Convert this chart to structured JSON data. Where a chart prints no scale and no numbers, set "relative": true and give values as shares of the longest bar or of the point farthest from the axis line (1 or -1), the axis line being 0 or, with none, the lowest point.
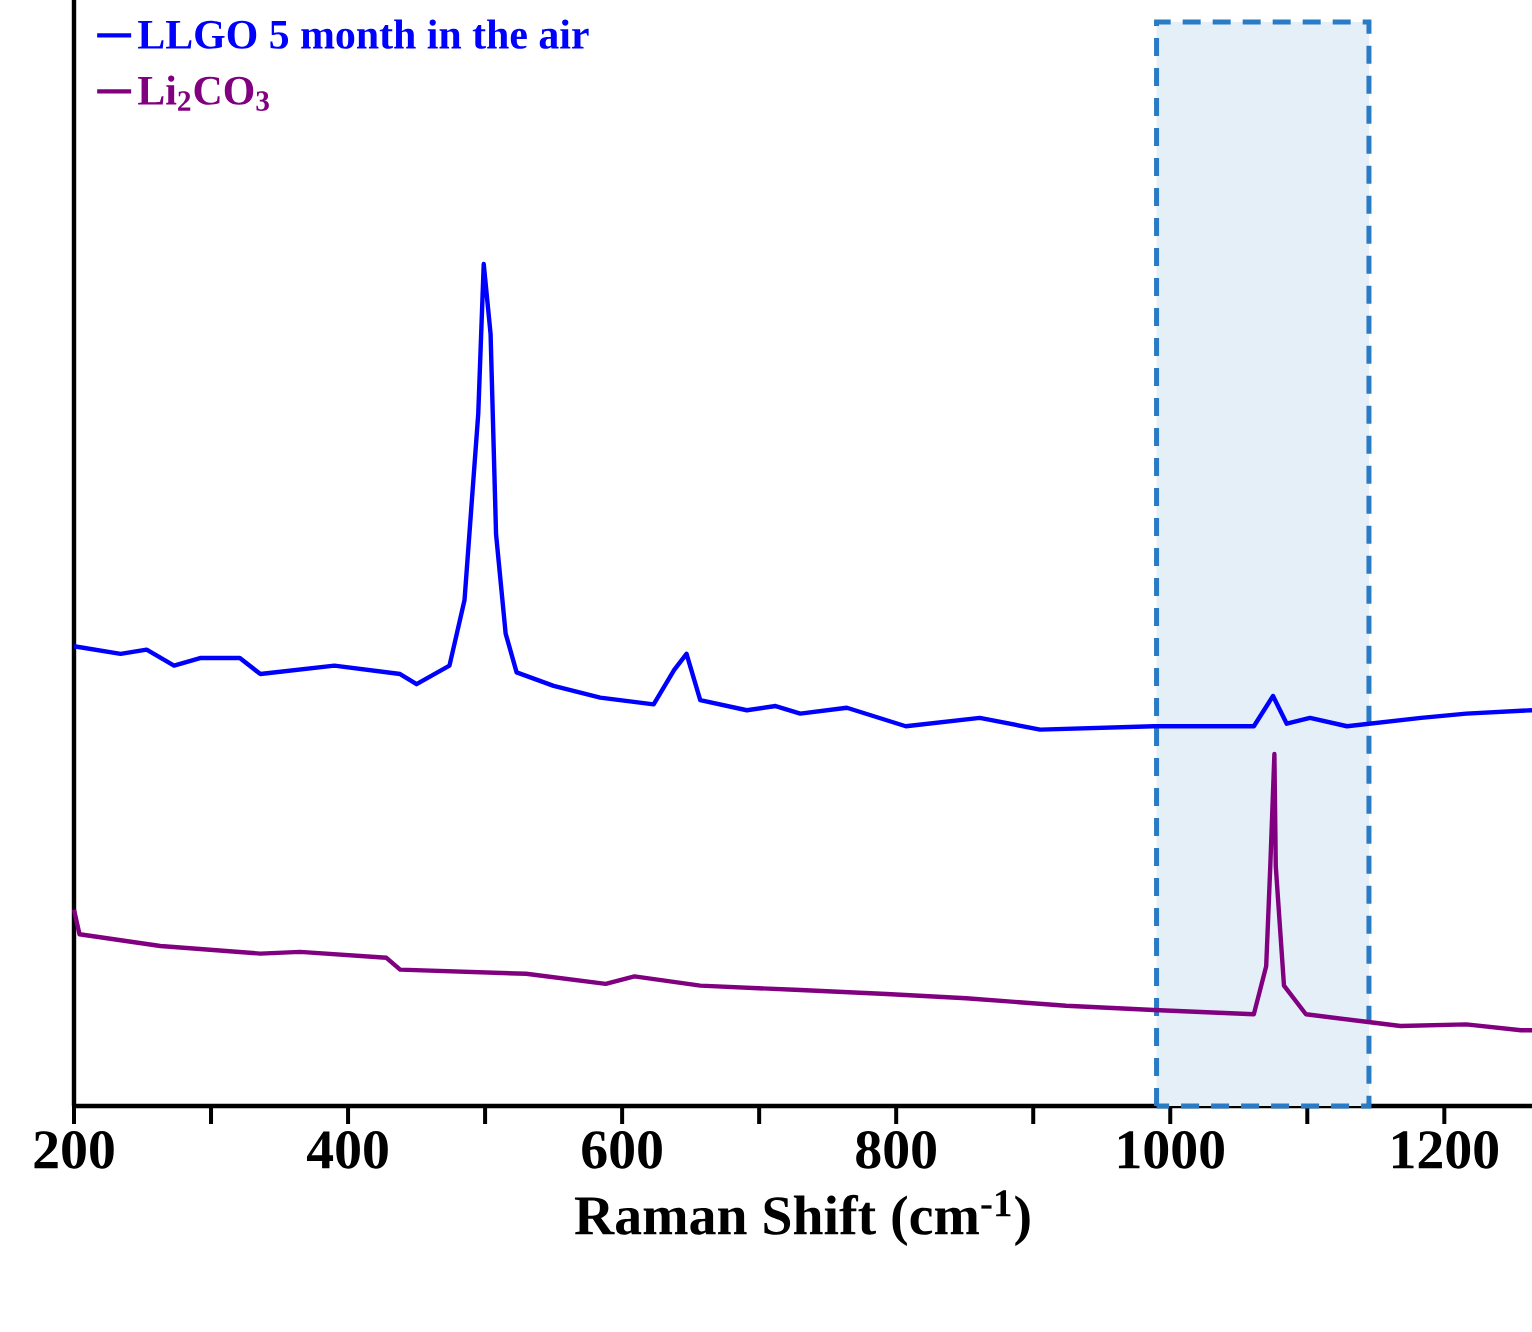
{
  "chart_data": {
    "type": "line",
    "xlabel": "Raman Shift (cm$^{-1}$)",
    "relative": true,
    "legend": "top left",
    "tick_labels": "x",
    "xlim": [
      200,
      1264
    ],
    "xticks": [
      200,
      {
        "value": 300,
        "label": null
      },
      400,
      {
        "value": 500,
        "label": null
      },
      600,
      {
        "value": 700,
        "label": null
      },
      800,
      {
        "value": 900,
        "label": null
      },
      1000,
      {
        "value": 1100,
        "label": null
      },
      1200
    ],
    "bands": [
      {
        "axis": "x",
        "from": 990,
        "to": 1145,
        "color": "#2a7bc6"
      }
    ],
    "series": [
      {
        "name": "LLGO 5 month in the air",
        "color": "#0000ff",
        "x": [
          200,
          234,
          253,
          273,
          292,
          321,
          336,
          390,
          438,
          450,
          474,
          485,
          495,
          499,
          504,
          508,
          515,
          523,
          550,
          584,
          623,
          638,
          647,
          657,
          691,
          712,
          730,
          764,
          807,
          861,
          905,
          988,
          1061,
          1075,
          1085,
          1102,
          1129,
          1183,
          1216,
          1264
        ],
        "values": [
          0.546,
          0.537,
          0.542,
          0.523,
          0.532,
          0.532,
          0.513,
          0.523,
          0.513,
          0.501,
          0.523,
          0.601,
          0.822,
          1.0,
          0.917,
          0.679,
          0.561,
          0.515,
          0.499,
          0.485,
          0.477,
          0.518,
          0.537,
          0.482,
          0.47,
          0.475,
          0.466,
          0.473,
          0.451,
          0.461,
          0.447,
          0.451,
          0.451,
          0.487,
          0.454,
          0.461,
          0.451,
          0.461,
          0.466,
          0.47
        ]
      },
      {
        "name": "Li$_{2}$CO$_{3}$",
        "color": "#800080",
        "x": [
          200,
          204,
          263,
          336,
          365,
          428,
          438,
          530,
          588,
          609,
          657,
          726,
          793,
          851,
          924,
          988,
          1061,
          1070,
          1073,
          1076,
          1077,
          1083,
          1099,
          1143,
          1168,
          1216,
          1256,
          1264
        ],
        "values": [
          0.233,
          0.204,
          0.19,
          0.181,
          0.183,
          0.176,
          0.162,
          0.157,
          0.145,
          0.154,
          0.143,
          0.138,
          0.133,
          0.128,
          0.119,
          0.114,
          0.109,
          0.166,
          0.285,
          0.418,
          0.285,
          0.143,
          0.109,
          0.1,
          0.095,
          0.097,
          0.09,
          0.09
        ]
      }
    ]
  }
}
